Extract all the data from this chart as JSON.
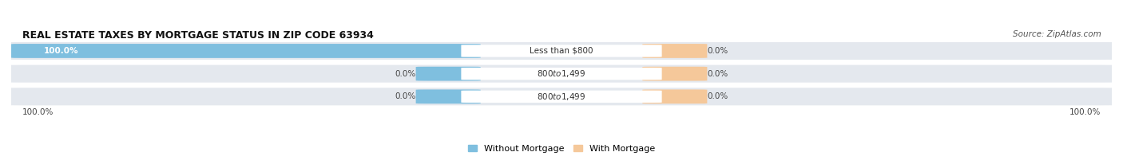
{
  "title": "REAL ESTATE TAXES BY MORTGAGE STATUS IN ZIP CODE 63934",
  "source": "Source: ZipAtlas.com",
  "rows": [
    {
      "label": "Less than $800",
      "without_mortgage": 100.0,
      "with_mortgage": 0.0
    },
    {
      "label": "$800 to $1,499",
      "without_mortgage": 0.0,
      "with_mortgage": 0.0
    },
    {
      "label": "$800 to $1,499",
      "without_mortgage": 0.0,
      "with_mortgage": 0.0
    }
  ],
  "without_mortgage_color": "#7fbfdf",
  "with_mortgage_color": "#f5c89a",
  "row_bg_color": "#e4e8ee",
  "title_fontsize": 9,
  "value_fontsize": 7.5,
  "legend_fontsize": 8,
  "source_fontsize": 7.5,
  "left_axis_label": "100.0%",
  "right_axis_label": "100.0%"
}
